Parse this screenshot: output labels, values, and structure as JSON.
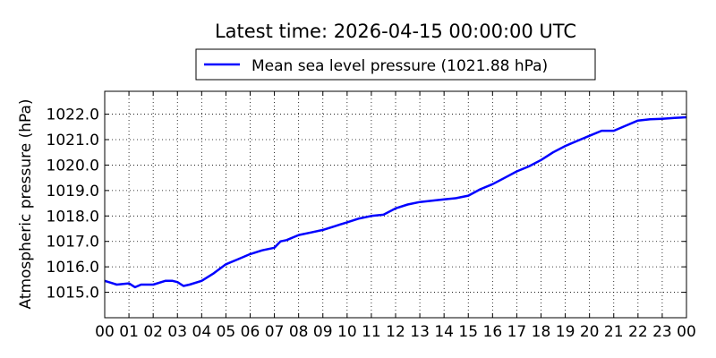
{
  "chart_data": {
    "type": "line",
    "title": "Latest time: 2026-04-15 00:00:00 UTC",
    "xlabel": "",
    "ylabel": "Atmospheric pressure (hPa)",
    "x_tick_labels": [
      "00",
      "01",
      "02",
      "03",
      "04",
      "05",
      "06",
      "07",
      "08",
      "09",
      "10",
      "11",
      "12",
      "13",
      "14",
      "15",
      "16",
      "17",
      "18",
      "19",
      "20",
      "21",
      "22",
      "23",
      "00"
    ],
    "y_ticks": [
      1015.0,
      1016.0,
      1017.0,
      1018.0,
      1019.0,
      1020.0,
      1021.0,
      1022.0
    ],
    "y_tick_labels": [
      "1015.0",
      "1016.0",
      "1017.0",
      "1018.0",
      "1019.0",
      "1020.0",
      "1021.0",
      "1022.0"
    ],
    "xlim_hours": [
      0,
      24
    ],
    "ylim": [
      1014.0,
      1022.9
    ],
    "grid": true,
    "legend_position": "top-center",
    "series": [
      {
        "name": "Mean sea level pressure (1021.88 hPa)",
        "color": "#0000ff",
        "x_hours": [
          0,
          0.5,
          1.0,
          1.25,
          1.5,
          2.0,
          2.5,
          2.8,
          3.0,
          3.25,
          3.5,
          4.0,
          4.5,
          5.0,
          5.5,
          6.0,
          6.5,
          7.0,
          7.25,
          7.5,
          8.0,
          8.5,
          9.0,
          9.5,
          10.0,
          10.5,
          11.0,
          11.5,
          12.0,
          12.5,
          13.0,
          13.5,
          14.0,
          14.5,
          15.0,
          15.5,
          16.0,
          16.5,
          17.0,
          17.5,
          18.0,
          18.5,
          19.0,
          19.5,
          20.0,
          20.5,
          21.0,
          21.5,
          22.0,
          22.5,
          23.0,
          23.5,
          24.0
        ],
        "values": [
          1015.45,
          1015.3,
          1015.35,
          1015.2,
          1015.3,
          1015.3,
          1015.45,
          1015.45,
          1015.4,
          1015.25,
          1015.3,
          1015.45,
          1015.75,
          1016.1,
          1016.3,
          1016.5,
          1016.65,
          1016.75,
          1017.0,
          1017.05,
          1017.25,
          1017.35,
          1017.45,
          1017.6,
          1017.75,
          1017.9,
          1018.0,
          1018.05,
          1018.3,
          1018.45,
          1018.55,
          1018.6,
          1018.65,
          1018.7,
          1018.8,
          1019.05,
          1019.25,
          1019.5,
          1019.75,
          1019.95,
          1020.2,
          1020.5,
          1020.75,
          1020.95,
          1021.15,
          1021.35,
          1021.35,
          1021.55,
          1021.75,
          1021.8,
          1021.82,
          1021.85,
          1021.88
        ]
      }
    ]
  }
}
